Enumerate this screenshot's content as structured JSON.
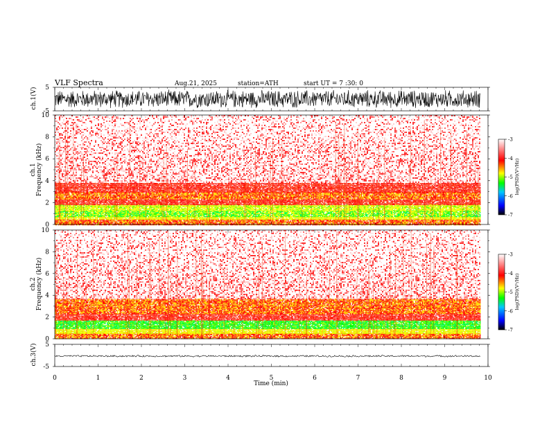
{
  "header": {
    "title": "VLF  Spectra",
    "date": "Aug.21, 2025",
    "station": "station=ATH",
    "start": "start  UT  =    7  :30: 0"
  },
  "chart_data": [
    {
      "type": "line",
      "name": "ch1-waveform",
      "ylabel": "ch.1(V)",
      "ylim": [
        -5,
        5
      ],
      "yticks": [
        "5",
        "-5"
      ],
      "xlim": [
        0,
        10
      ],
      "data_until": 9.82,
      "description_values": {
        "amplitude_typical": 4.2
      }
    },
    {
      "type": "heatmap",
      "name": "ch1-spectrogram",
      "ylabel_line1": "ch.1",
      "ylabel_line2": "Frequency  (kHz)",
      "ylim": [
        0,
        10
      ],
      "yticks": [
        "0",
        "2",
        "4",
        "6",
        "8",
        "10"
      ],
      "xlim": [
        0,
        10
      ],
      "bands": [
        {
          "from": 0.0,
          "to": 0.45,
          "level": "red-yellow"
        },
        {
          "from": 0.45,
          "to": 0.7,
          "level": "yellow"
        },
        {
          "from": 0.7,
          "to": 1.3,
          "level": "green-yellow"
        },
        {
          "from": 1.3,
          "to": 1.85,
          "level": "yellow-green"
        },
        {
          "from": 1.85,
          "to": 2.3,
          "level": "red"
        },
        {
          "from": 2.3,
          "to": 3.0,
          "level": "red-yellow"
        },
        {
          "from": 3.0,
          "to": 3.8,
          "level": "red"
        },
        {
          "from": 3.8,
          "to": 10.0,
          "level": "light-red"
        }
      ],
      "colorbar": {
        "label": "log(PSD)(V²/Hz)",
        "min": -7,
        "max": -3,
        "ticks": [
          "-3",
          "-4",
          "-5",
          "-6",
          "-7"
        ]
      }
    },
    {
      "type": "heatmap",
      "name": "ch2-spectrogram",
      "ylabel_line1": "ch.2",
      "ylabel_line2": "Frequency  (kHz)",
      "ylim": [
        0,
        10
      ],
      "yticks": [
        "0",
        "2",
        "4",
        "6",
        "8",
        "10"
      ],
      "xlim": [
        0,
        10
      ],
      "bands": [
        {
          "from": 0.0,
          "to": 0.5,
          "level": "red-yellow"
        },
        {
          "from": 0.5,
          "to": 0.9,
          "level": "yellow"
        },
        {
          "from": 0.9,
          "to": 1.7,
          "level": "green"
        },
        {
          "from": 1.7,
          "to": 2.3,
          "level": "red"
        },
        {
          "from": 2.3,
          "to": 3.7,
          "level": "red-yellow"
        },
        {
          "from": 3.7,
          "to": 10.0,
          "level": "light-red"
        }
      ],
      "colorbar": {
        "label": "log(PSD)(V²/Hz)",
        "min": -7,
        "max": -3,
        "ticks": [
          "-3",
          "-4",
          "-5",
          "-6",
          "-7"
        ]
      }
    },
    {
      "type": "line",
      "name": "ch3-waveform",
      "ylabel": "ch.3(V)",
      "ylim": [
        -5,
        5
      ],
      "yticks": [
        "5",
        "-5"
      ],
      "xlim": [
        0,
        10
      ],
      "data_until": 9.82,
      "description_values": {
        "mean": -0.3,
        "amplitude_typical": 0.4
      }
    }
  ],
  "x_axis": {
    "label": "Time  (min)",
    "ticks": [
      "0",
      "1",
      "2",
      "3",
      "4",
      "5",
      "6",
      "7",
      "8",
      "9",
      "10"
    ]
  },
  "colors": {
    "background": "#ffffff",
    "ink": "#000000",
    "colormap": [
      "#000000",
      "#0000ff",
      "#00ffff",
      "#00ff00",
      "#ffff00",
      "#ff0000",
      "#ffffff"
    ]
  }
}
